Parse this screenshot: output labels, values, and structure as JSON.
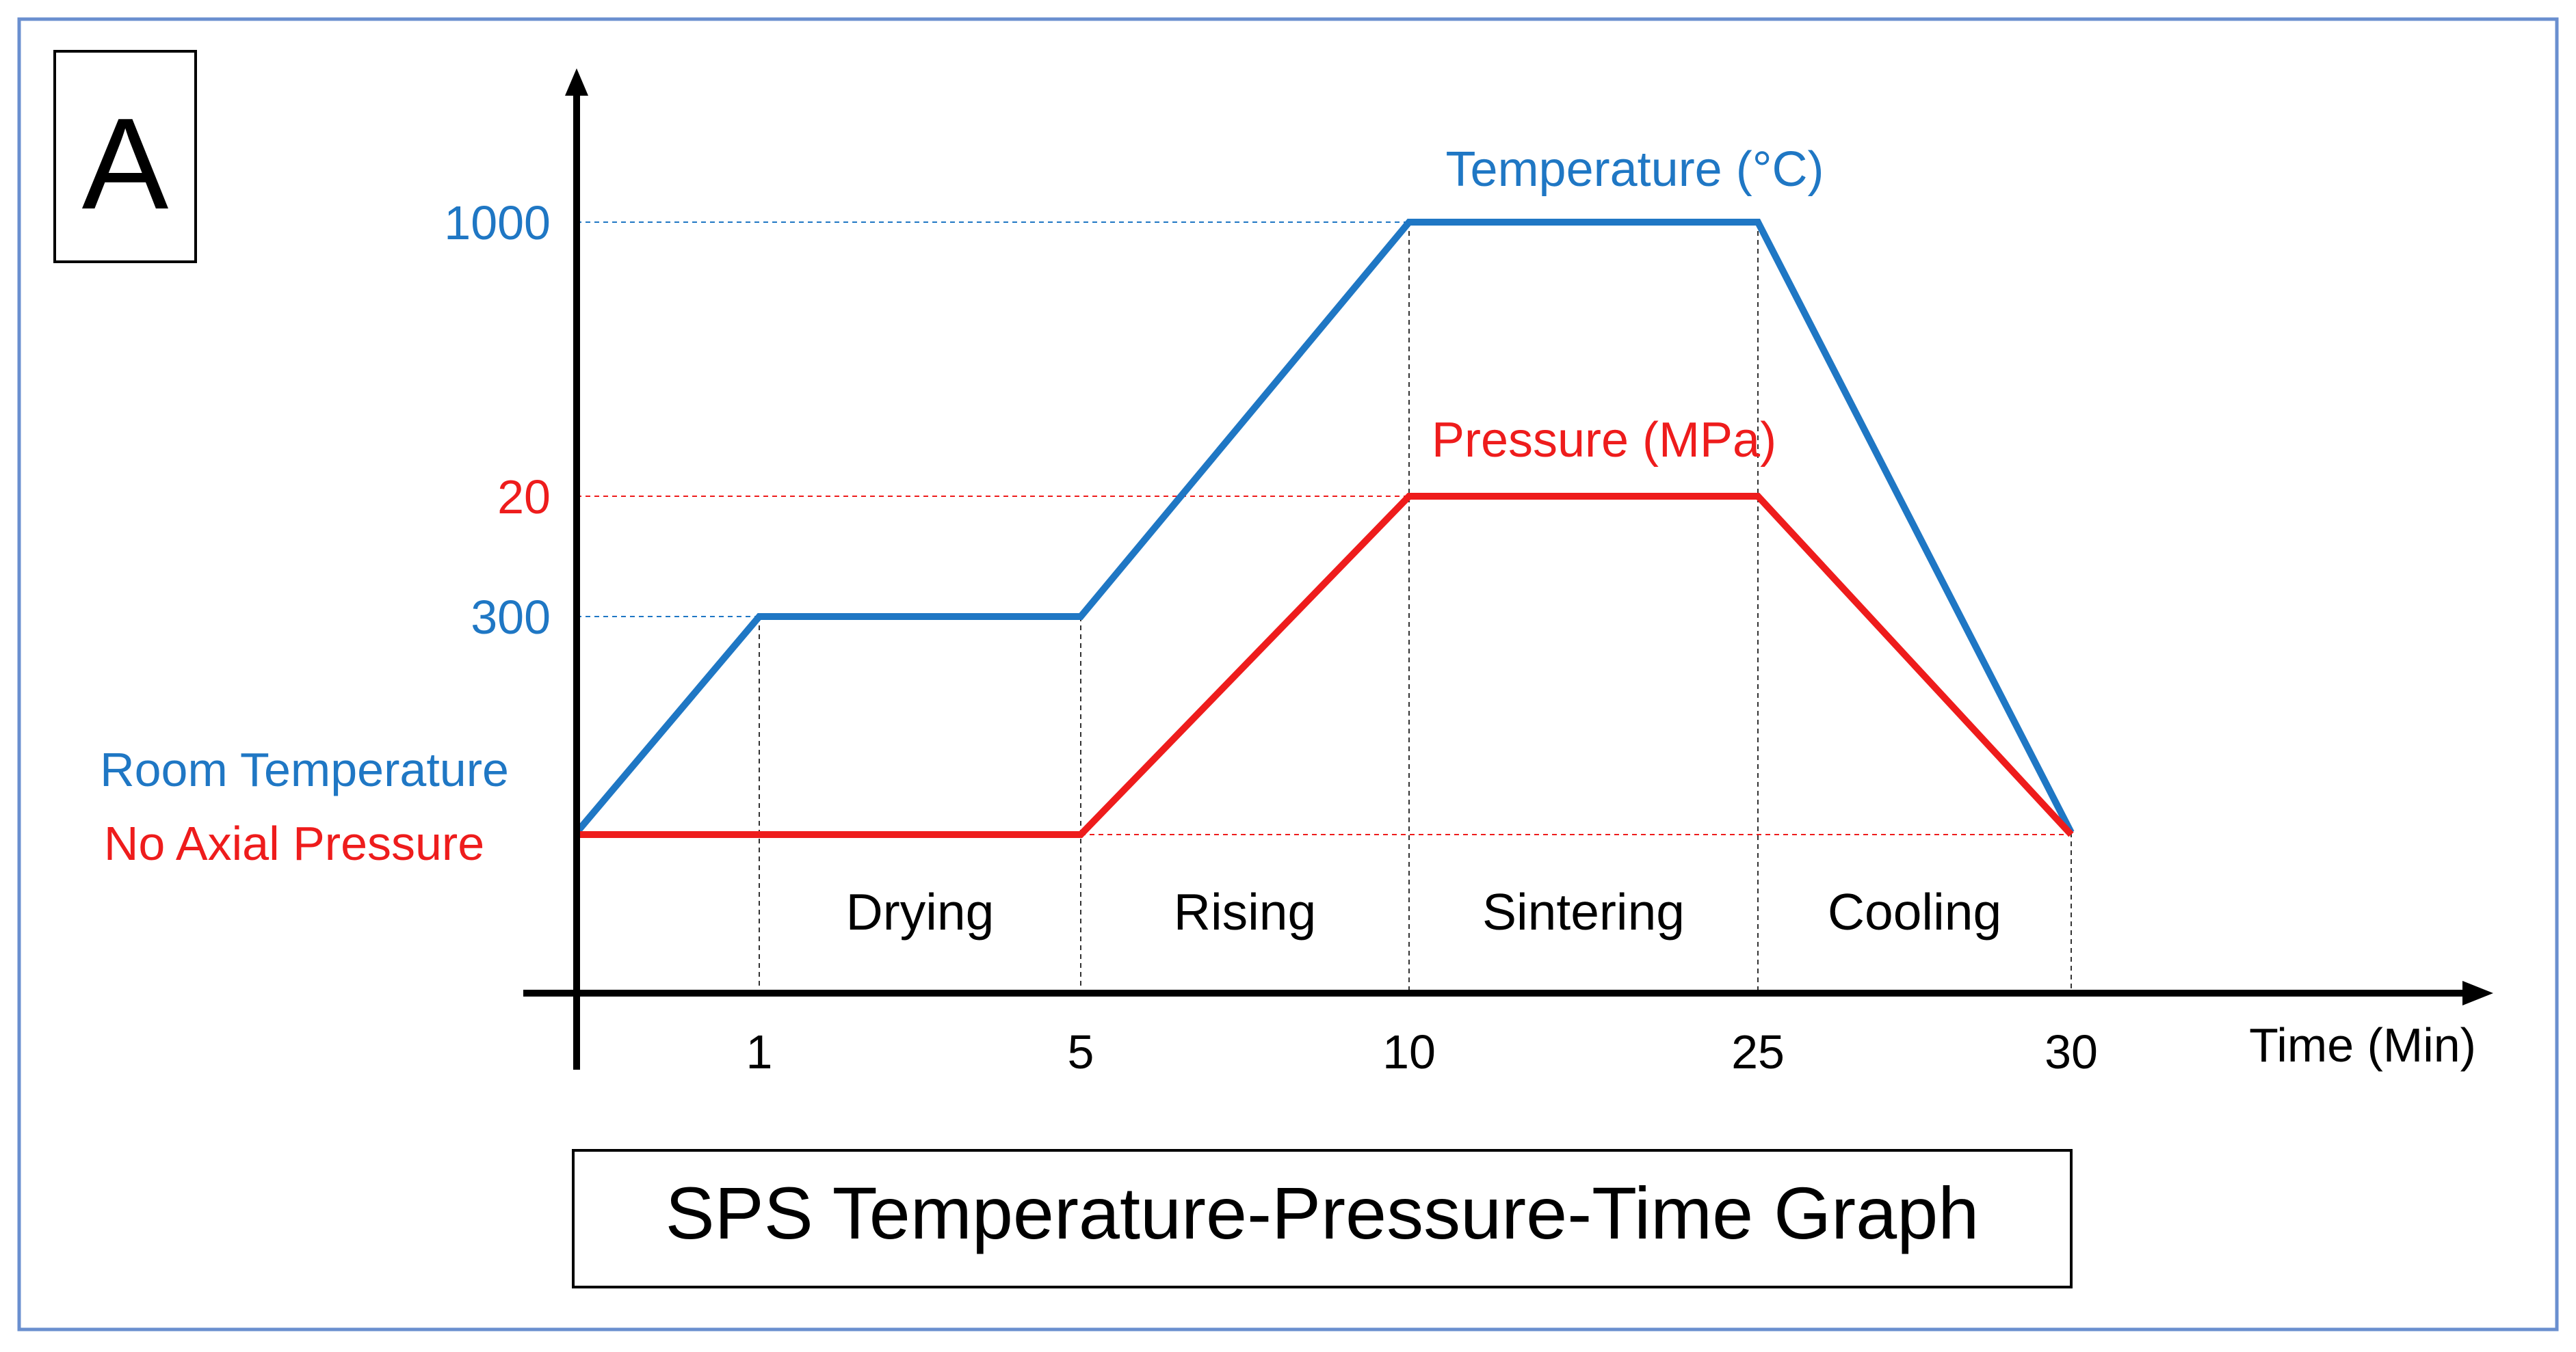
{
  "panel_label": "A",
  "chart_data": {
    "type": "line",
    "title": "SPS Temperature-Pressure-Time Graph",
    "xlabel": "Time (Min)",
    "x_ticks": [
      1,
      5,
      10,
      25,
      30
    ],
    "x_tick_labels": [
      "1",
      "5",
      "10",
      "25",
      "30"
    ],
    "y_tick_labels": [
      {
        "label": "1000",
        "series": "temperature"
      },
      {
        "label": "20",
        "series": "pressure"
      },
      {
        "label": "300",
        "series": "temperature"
      }
    ],
    "baseline_labels": [
      {
        "text": "Room Temperature",
        "series": "temperature"
      },
      {
        "text": "No Axial Pressure",
        "series": "pressure"
      }
    ],
    "phases": [
      {
        "label": "Drying",
        "start": 1,
        "end": 5
      },
      {
        "label": "Rising",
        "start": 5,
        "end": 10
      },
      {
        "label": "Sintering",
        "start": 10,
        "end": 25
      },
      {
        "label": "Cooling",
        "start": 25,
        "end": 30
      }
    ],
    "series": [
      {
        "key": "temperature",
        "name": "Temperature (°C)",
        "color": "#1f77c4",
        "points": [
          {
            "x": 0,
            "y": "Room Temperature"
          },
          {
            "x": 1,
            "y": "300"
          },
          {
            "x": 5,
            "y": "300"
          },
          {
            "x": 10,
            "y": "1000"
          },
          {
            "x": 25,
            "y": "1000"
          },
          {
            "x": 30,
            "y": "Room Temperature"
          }
        ]
      },
      {
        "key": "pressure",
        "name": "Pressure (MPa)",
        "color": "#ee1c1c",
        "points": [
          {
            "x": 0,
            "y": "No Axial Pressure"
          },
          {
            "x": 5,
            "y": "No Axial Pressure"
          },
          {
            "x": 10,
            "y": "20"
          },
          {
            "x": 25,
            "y": "20"
          },
          {
            "x": 30,
            "y": "No Axial Pressure"
          }
        ]
      }
    ],
    "note": "The x-axis is schematic (tick spacing is not proportional) and the two y-scales are qualitative levels."
  },
  "colors": {
    "frame": "#6a8fcf",
    "axis": "#000000",
    "guide": "#333333",
    "title_text": "#000000"
  }
}
